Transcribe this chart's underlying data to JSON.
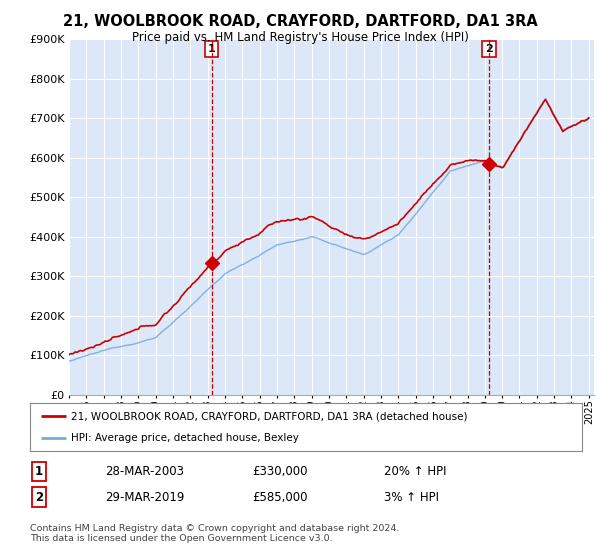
{
  "title": "21, WOOLBROOK ROAD, CRAYFORD, DARTFORD, DA1 3RA",
  "subtitle": "Price paid vs. HM Land Registry's House Price Index (HPI)",
  "ylim": [
    0,
    900000
  ],
  "yticks": [
    0,
    100000,
    200000,
    300000,
    400000,
    500000,
    600000,
    700000,
    800000,
    900000
  ],
  "ytick_labels": [
    "£0",
    "£100K",
    "£200K",
    "£300K",
    "£400K",
    "£500K",
    "£600K",
    "£700K",
    "£800K",
    "£900K"
  ],
  "background_color": "#ffffff",
  "plot_bg_color": "#dce8f8",
  "grid_color": "#ffffff",
  "marker1_date": 2003.23,
  "marker1_value": 330000,
  "marker1_label": "1",
  "marker2_date": 2019.24,
  "marker2_value": 585000,
  "marker2_label": "2",
  "legend_line1": "21, WOOLBROOK ROAD, CRAYFORD, DARTFORD, DA1 3RA (detached house)",
  "legend_line2": "HPI: Average price, detached house, Bexley",
  "table_row1": [
    "1",
    "28-MAR-2003",
    "£330,000",
    "20% ↑ HPI"
  ],
  "table_row2": [
    "2",
    "29-MAR-2019",
    "£585,000",
    "3% ↑ HPI"
  ],
  "footnote": "Contains HM Land Registry data © Crown copyright and database right 2024.\nThis data is licensed under the Open Government Licence v3.0.",
  "line_color_red": "#cc0000",
  "line_color_blue": "#7aaadd",
  "marker_color": "#cc0000"
}
